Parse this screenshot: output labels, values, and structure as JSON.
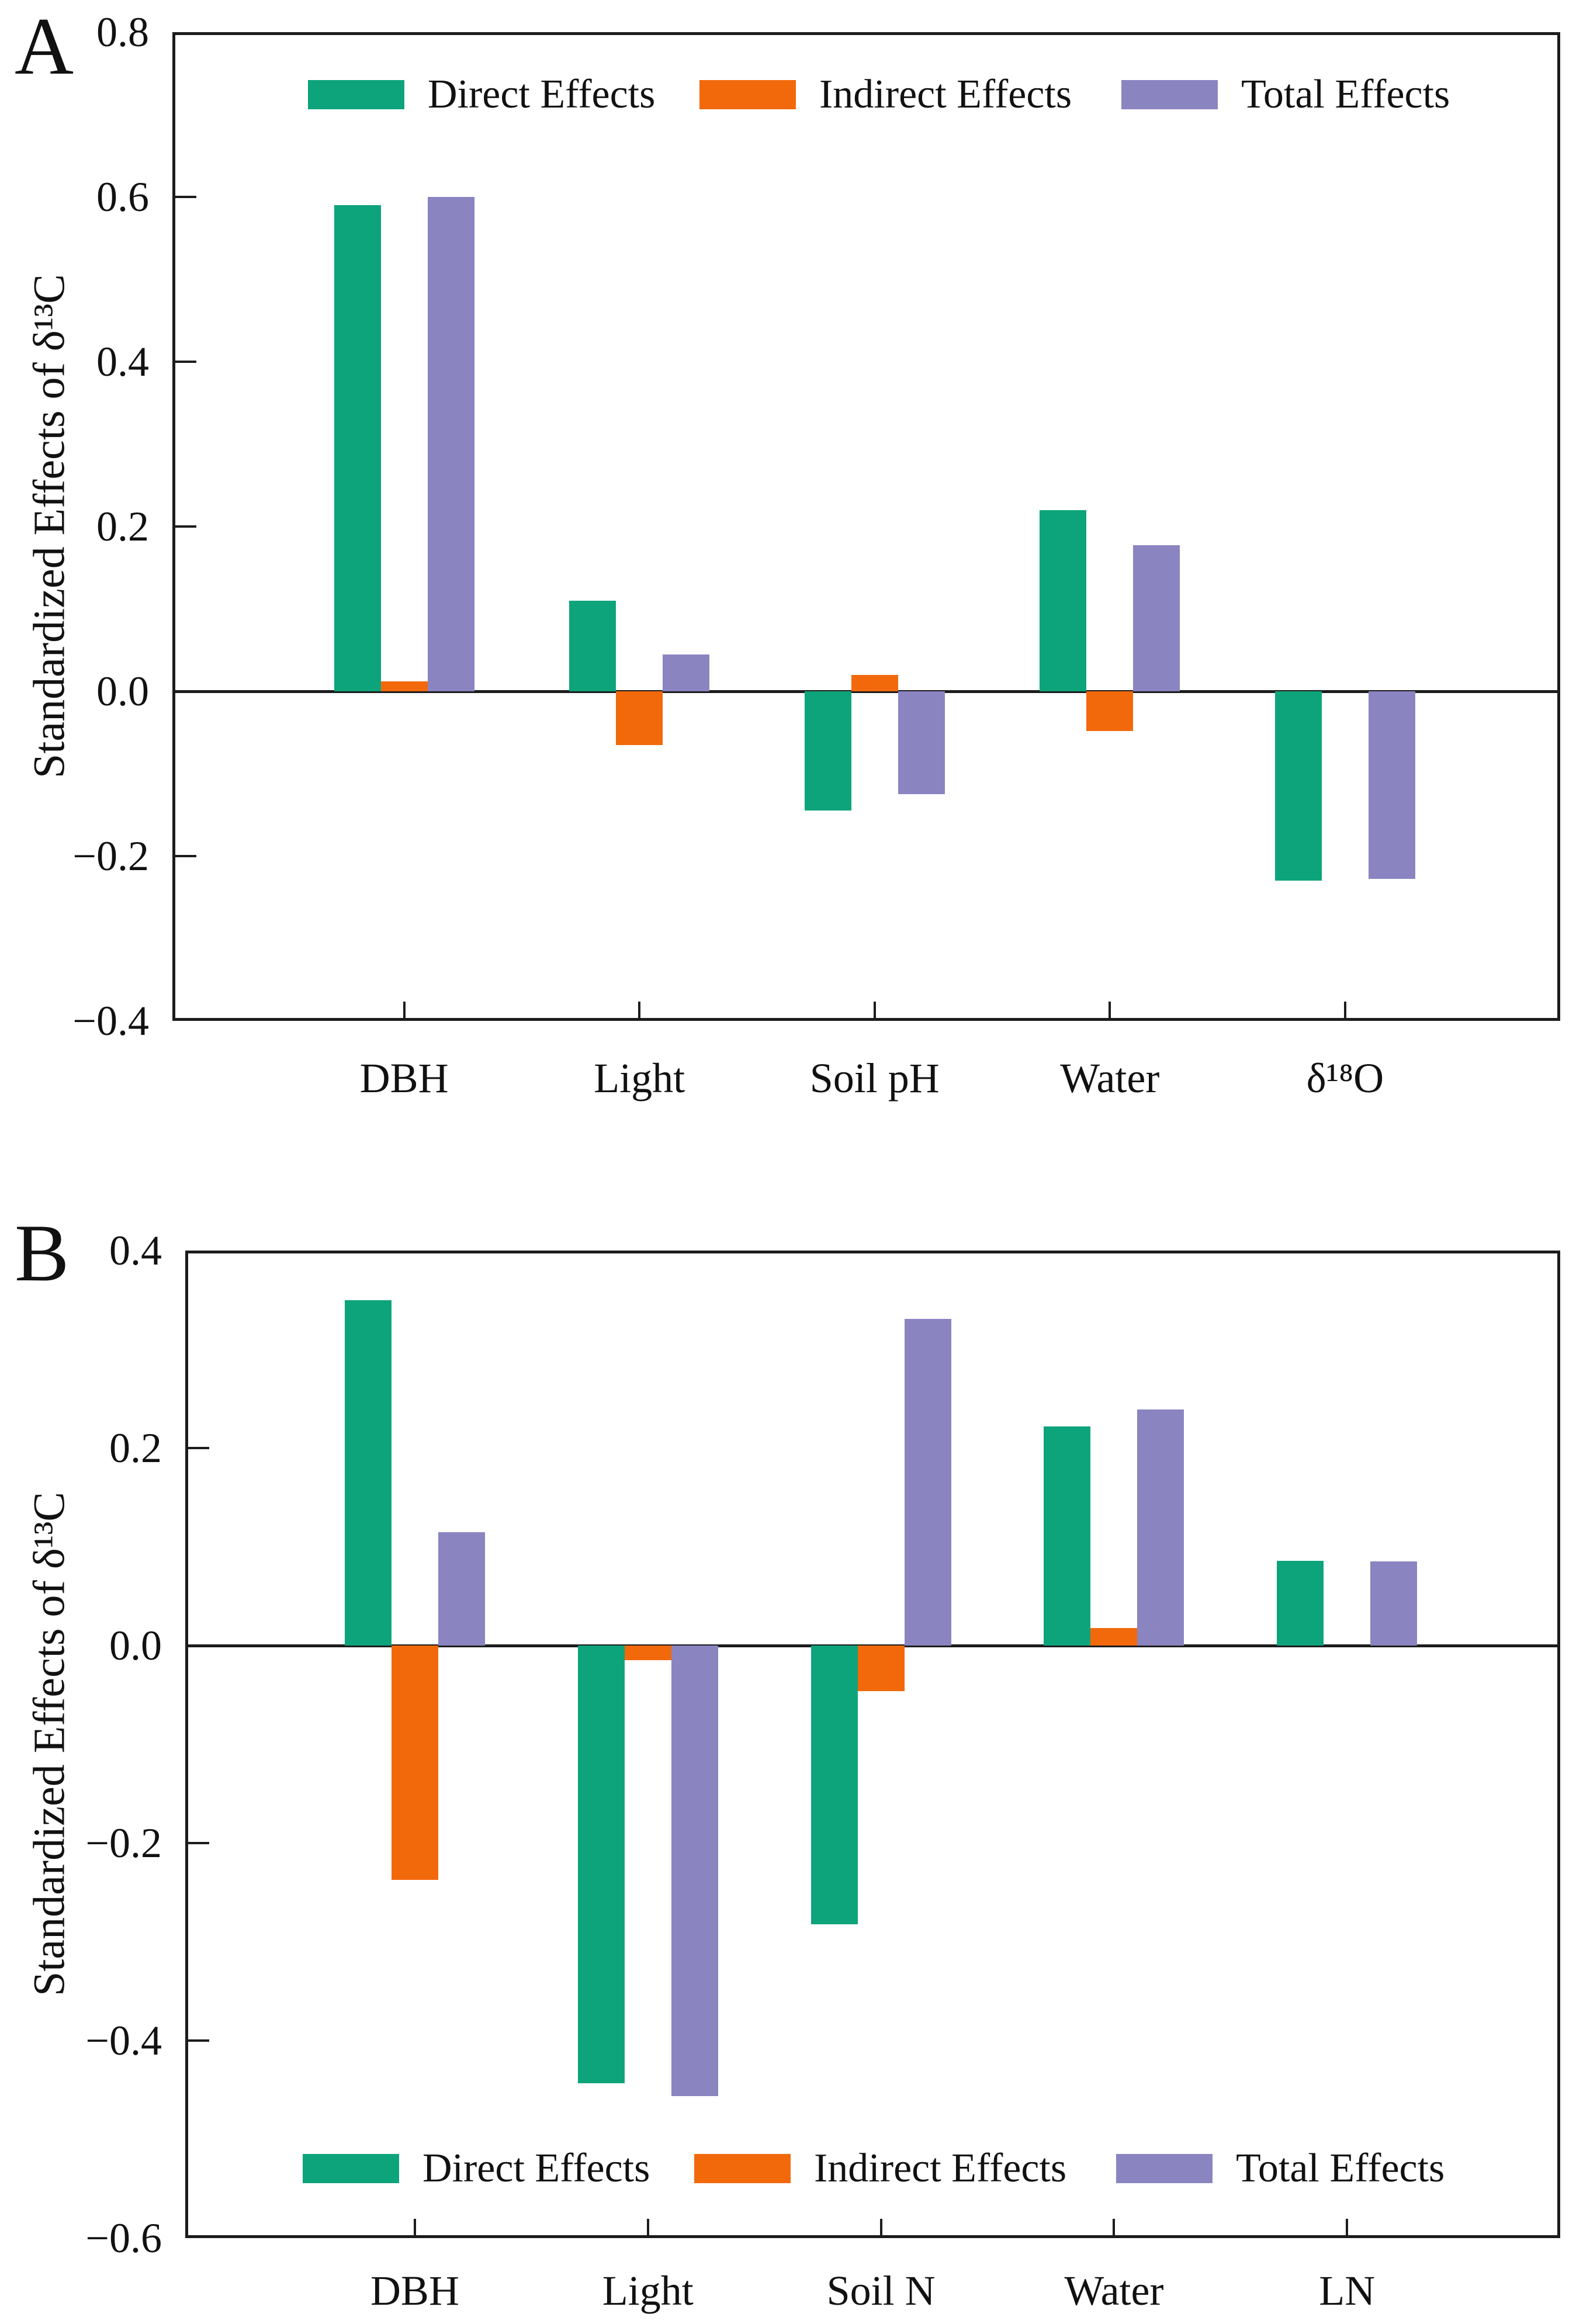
{
  "figure_type": "two-panel grouped bar chart",
  "axis_color": "#1c1c1c",
  "chart_data": [
    {
      "type": "bar",
      "panel_label": "A",
      "ylabel": "Standardized Effects of δ¹³C",
      "categories": [
        "DBH",
        "Light",
        "Soil pH",
        "Water",
        "δ¹⁸O"
      ],
      "series": [
        {
          "name": "Direct Effects",
          "color": "#0ea47b",
          "values": [
            0.59,
            0.11,
            -0.145,
            0.22,
            -0.23
          ]
        },
        {
          "name": "Indirect Effects",
          "color": "#f2690c",
          "values": [
            0.012,
            -0.065,
            0.02,
            -0.048,
            0
          ]
        },
        {
          "name": "Total Effects",
          "color": "#8a84c1",
          "values": [
            0.6,
            0.045,
            -0.125,
            0.177,
            -0.228
          ]
        }
      ],
      "ylim": [
        -0.4,
        0.8
      ],
      "ytick_labels": [
        "0.8",
        "0.6",
        "0.4",
        "0.2",
        "0.0",
        "−0.2",
        "−0.4"
      ],
      "legend_position": "top-inside",
      "grid": false
    },
    {
      "type": "bar",
      "panel_label": "B",
      "ylabel": "Standardized Effects of δ¹³C",
      "categories": [
        "DBH",
        "Light",
        "Soil N",
        "Water",
        "LN"
      ],
      "series": [
        {
          "name": "Direct Effects",
          "color": "#0ea47b",
          "values": [
            0.35,
            -0.443,
            -0.282,
            0.222,
            0.086
          ]
        },
        {
          "name": "Indirect Effects",
          "color": "#f2690c",
          "values": [
            -0.237,
            -0.015,
            -0.046,
            0.018,
            0
          ]
        },
        {
          "name": "Total Effects",
          "color": "#8a84c1",
          "values": [
            0.115,
            -0.456,
            0.331,
            0.239,
            0.085
          ]
        }
      ],
      "ylim": [
        -0.6,
        0.4
      ],
      "ytick_labels": [
        "0.4",
        "0.2",
        "0.0",
        "−0.2",
        "−0.4",
        "−0.6"
      ],
      "legend_position": "bottom-inside",
      "grid": false
    }
  ]
}
